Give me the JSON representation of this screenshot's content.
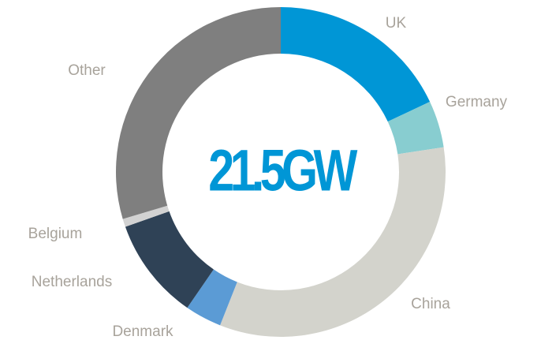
{
  "chart_data": {
    "type": "pie",
    "donut": true,
    "center_label": "21.5GW",
    "categories": [
      "UK",
      "Germany",
      "China",
      "Denmark",
      "Netherlands",
      "Belgium",
      "Other"
    ],
    "values": [
      18,
      4.6,
      33.4,
      3.6,
      10,
      0.8,
      29.6
    ],
    "colors": [
      "#0096d6",
      "#88cdd0",
      "#d3d3cc",
      "#5b9bd5",
      "#2f4256",
      "#d2d2d2",
      "#7f7f7f"
    ]
  }
}
